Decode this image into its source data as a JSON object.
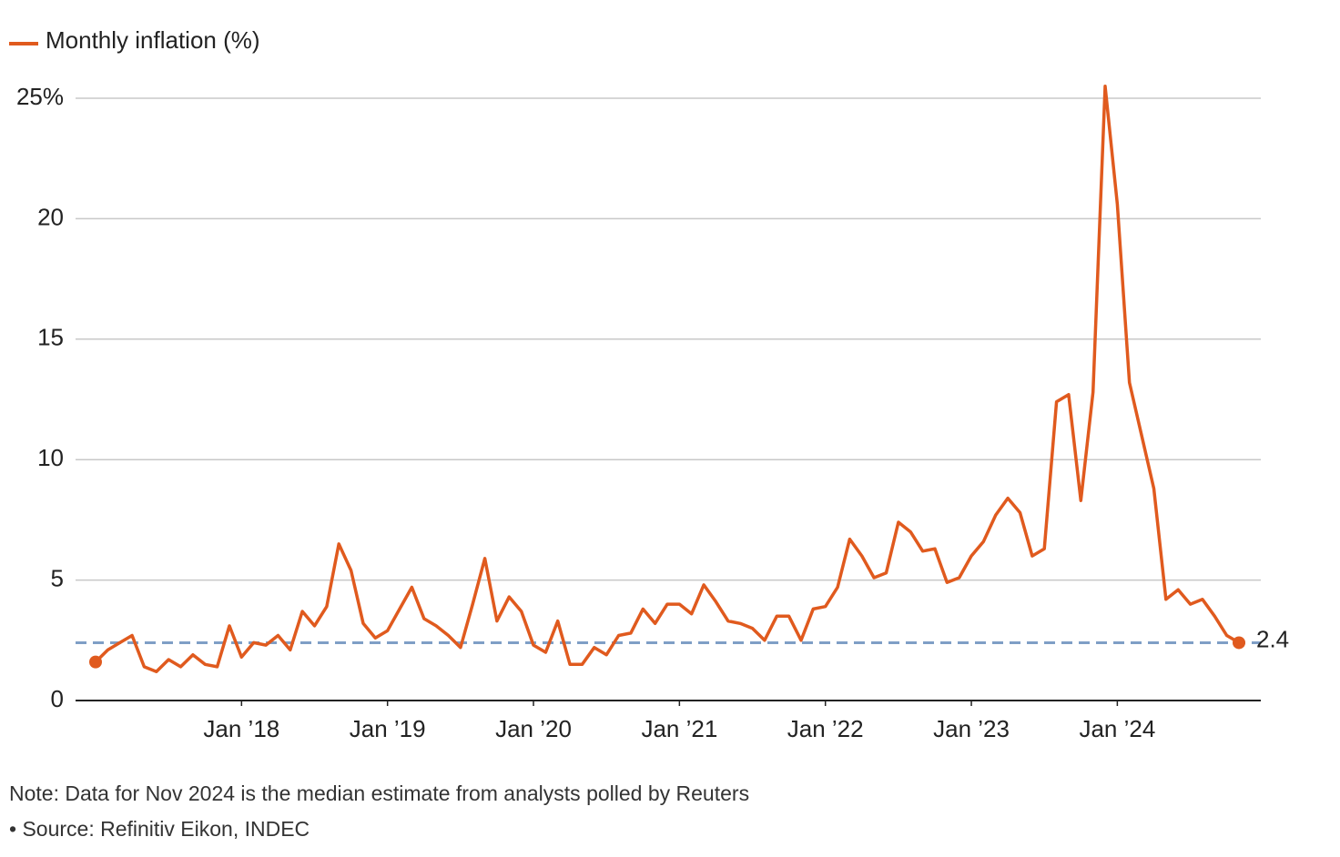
{
  "chart_data": {
    "type": "line",
    "legend": "Monthly inflation (%)",
    "x": [
      "2017-01",
      "2017-02",
      "2017-03",
      "2017-04",
      "2017-05",
      "2017-06",
      "2017-07",
      "2017-08",
      "2017-09",
      "2017-10",
      "2017-11",
      "2017-12",
      "2018-01",
      "2018-02",
      "2018-03",
      "2018-04",
      "2018-05",
      "2018-06",
      "2018-07",
      "2018-08",
      "2018-09",
      "2018-10",
      "2018-11",
      "2018-12",
      "2019-01",
      "2019-02",
      "2019-03",
      "2019-04",
      "2019-05",
      "2019-06",
      "2019-07",
      "2019-08",
      "2019-09",
      "2019-10",
      "2019-11",
      "2019-12",
      "2020-01",
      "2020-02",
      "2020-03",
      "2020-04",
      "2020-05",
      "2020-06",
      "2020-07",
      "2020-08",
      "2020-09",
      "2020-10",
      "2020-11",
      "2020-12",
      "2021-01",
      "2021-02",
      "2021-03",
      "2021-04",
      "2021-05",
      "2021-06",
      "2021-07",
      "2021-08",
      "2021-09",
      "2021-10",
      "2021-11",
      "2021-12",
      "2022-01",
      "2022-02",
      "2022-03",
      "2022-04",
      "2022-05",
      "2022-06",
      "2022-07",
      "2022-08",
      "2022-09",
      "2022-10",
      "2022-11",
      "2022-12",
      "2023-01",
      "2023-02",
      "2023-03",
      "2023-04",
      "2023-05",
      "2023-06",
      "2023-07",
      "2023-08",
      "2023-09",
      "2023-10",
      "2023-11",
      "2023-12",
      "2024-01",
      "2024-02",
      "2024-03",
      "2024-04",
      "2024-05",
      "2024-06",
      "2024-07",
      "2024-08",
      "2024-09",
      "2024-10",
      "2024-11"
    ],
    "series": [
      {
        "name": "Monthly inflation (%)",
        "color": "#e05a1e",
        "values": [
          1.6,
          2.1,
          2.4,
          2.7,
          1.4,
          1.2,
          1.7,
          1.4,
          1.9,
          1.5,
          1.4,
          3.1,
          1.8,
          2.4,
          2.3,
          2.7,
          2.1,
          3.7,
          3.1,
          3.9,
          6.5,
          5.4,
          3.2,
          2.6,
          2.9,
          3.8,
          4.7,
          3.4,
          3.1,
          2.7,
          2.2,
          4.0,
          5.9,
          3.3,
          4.3,
          3.7,
          2.3,
          2.0,
          3.3,
          1.5,
          1.5,
          2.2,
          1.9,
          2.7,
          2.8,
          3.8,
          3.2,
          4.0,
          4.0,
          3.6,
          4.8,
          4.1,
          3.3,
          3.2,
          3.0,
          2.5,
          3.5,
          3.5,
          2.5,
          3.8,
          3.9,
          4.7,
          6.7,
          6.0,
          5.1,
          5.3,
          7.4,
          7.0,
          6.2,
          6.3,
          4.9,
          5.1,
          6.0,
          6.6,
          7.7,
          8.4,
          7.8,
          6.0,
          6.3,
          12.4,
          12.7,
          8.3,
          12.8,
          25.5,
          20.6,
          13.2,
          11.0,
          8.8,
          4.2,
          4.6,
          4.0,
          4.2,
          3.5,
          2.7,
          2.4
        ]
      }
    ],
    "xticks": [
      {
        "value": "2018-01",
        "label": "Jan ’18"
      },
      {
        "value": "2019-01",
        "label": "Jan ’19"
      },
      {
        "value": "2020-01",
        "label": "Jan ’20"
      },
      {
        "value": "2021-01",
        "label": "Jan ’21"
      },
      {
        "value": "2022-01",
        "label": "Jan ’22"
      },
      {
        "value": "2023-01",
        "label": "Jan ’23"
      },
      {
        "value": "2024-01",
        "label": "Jan ’24"
      }
    ],
    "ylim": [
      0,
      25
    ],
    "yticks": [
      0,
      5,
      10,
      15,
      20,
      {
        "value": 25,
        "label": "25%"
      }
    ],
    "grid": true,
    "reference_line": {
      "value": 2.4,
      "color": "#7f9fc6"
    },
    "note": "Note: Data for Nov 2024 is the median estimate from analysts polled by Reuters",
    "source": "• Source: Refinitiv Eikon, INDEC"
  }
}
